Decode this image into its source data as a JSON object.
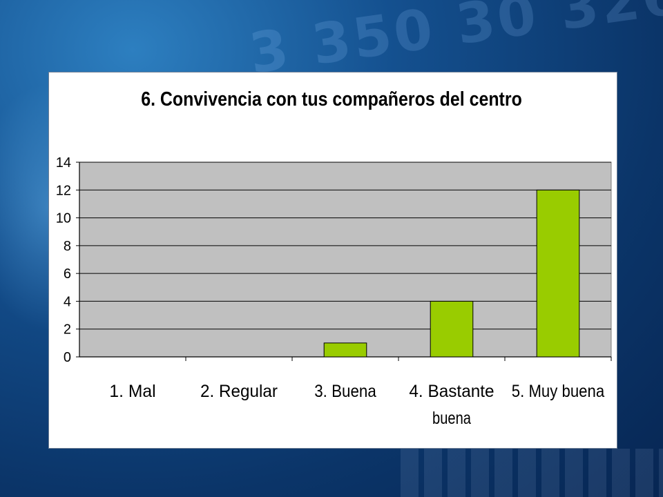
{
  "chart_data": {
    "type": "bar",
    "title": "6. Convivencia con tus compañeros del centro",
    "categories": [
      "1. Mal",
      "2. Regular",
      "3. Buena",
      "4. Bastante buena",
      "5. Muy buena"
    ],
    "values": [
      0,
      0,
      1,
      4,
      12
    ],
    "ylim": [
      0,
      14
    ],
    "yticks": [
      "0",
      "2",
      "4",
      "6",
      "8",
      "10",
      "12",
      "14"
    ],
    "grid": true,
    "legend": "none",
    "colors": {
      "bar": "#99cc00",
      "plot_area": "#c0c0c0"
    }
  }
}
